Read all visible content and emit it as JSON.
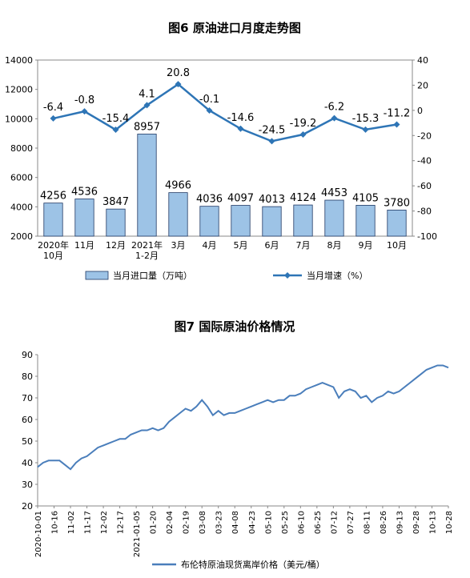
{
  "chart_data": [
    {
      "type": "bar",
      "title": "图6  原油进口月度走势图",
      "categories": [
        "2020年\n10月",
        "11月",
        "12月",
        "2021年\n1-2月",
        "3月",
        "4月",
        "5月",
        "6月",
        "7月",
        "8月",
        "9月",
        "10月"
      ],
      "series": [
        {
          "name": "当月进口量（万吨）",
          "type": "bar",
          "color": "#9dc3e6",
          "values": [
            4256,
            4536,
            3847,
            8957,
            4966,
            4036,
            4097,
            4013,
            4124,
            4453,
            4105,
            3780
          ]
        },
        {
          "name": "当月增速（%）",
          "type": "line",
          "axis": "y2",
          "color": "#2e75b6",
          "values": [
            -6.4,
            -0.8,
            -15.4,
            4.1,
            20.8,
            -0.1,
            -14.6,
            -24.5,
            -19.2,
            -6.2,
            -15.3,
            -11.2
          ]
        }
      ],
      "ylim": [
        2000,
        14000
      ],
      "yticks": [
        2000,
        4000,
        6000,
        8000,
        10000,
        12000,
        14000
      ],
      "y2lim": [
        -100,
        40
      ],
      "y2ticks": [
        -100,
        -80,
        -60,
        -40,
        -20,
        0,
        20,
        40
      ],
      "legend": "bottom"
    },
    {
      "type": "line",
      "title": "图7  国际原油价格情况",
      "categories": [
        "2020-10-01",
        null,
        null,
        "10-16",
        null,
        null,
        "11-02",
        null,
        null,
        "11-17",
        null,
        null,
        "12-02",
        null,
        null,
        "12-17",
        null,
        null,
        "2021-01-05",
        null,
        null,
        "01-20",
        null,
        null,
        "02-04",
        null,
        null,
        "02-19",
        null,
        null,
        "03-08",
        null,
        null,
        "03-23",
        null,
        null,
        "04-08",
        null,
        null,
        "04-23",
        null,
        null,
        "05-10",
        null,
        null,
        "05-25",
        null,
        null,
        "06-10",
        null,
        null,
        "06-25",
        null,
        null,
        "07-12",
        null,
        null,
        "07-27",
        null,
        null,
        "08-11",
        null,
        null,
        "08-26",
        null,
        null,
        "09-13",
        null,
        null,
        "09-28",
        null,
        null,
        "10-13",
        null,
        null,
        "10-28"
      ],
      "series": [
        {
          "name": "布伦特原油现货离岸价格（美元/桶）",
          "color": "#4a7ebb",
          "values": [
            38,
            40,
            41,
            41,
            41,
            39,
            37,
            40,
            42,
            43,
            45,
            47,
            48,
            49,
            50,
            51,
            51,
            53,
            54,
            55,
            55,
            56,
            55,
            56,
            59,
            61,
            63,
            65,
            64,
            66,
            69,
            66,
            62,
            64,
            62,
            63,
            63,
            64,
            65,
            66,
            67,
            68,
            69,
            68,
            69,
            69,
            71,
            71,
            72,
            74,
            75,
            76,
            77,
            76,
            75,
            70,
            73,
            74,
            73,
            70,
            71,
            68,
            70,
            71,
            73,
            72,
            73,
            75,
            77,
            79,
            81,
            83,
            84,
            85,
            85,
            84
          ]
        }
      ],
      "ylim": [
        20,
        90
      ],
      "yticks": [
        20,
        30,
        40,
        50,
        60,
        70,
        80,
        90
      ],
      "legend": "bottom"
    }
  ]
}
